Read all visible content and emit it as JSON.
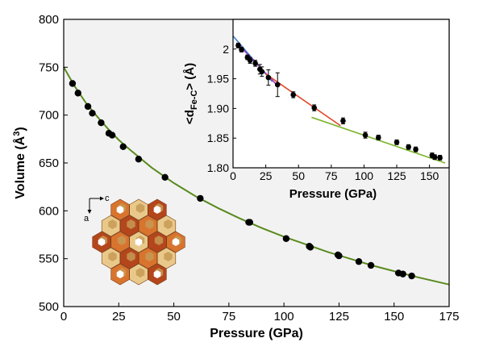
{
  "chart_data": [
    {
      "type": "scatter",
      "xlabel": "Pressure (GPa)",
      "ylabel": "Volume (Å3)",
      "xlim": [
        0,
        175
      ],
      "ylim": [
        500,
        800
      ],
      "xticks": [
        0,
        25,
        50,
        75,
        100,
        125,
        150,
        175
      ],
      "yticks": [
        500,
        550,
        600,
        650,
        700,
        750,
        800
      ],
      "x_tick_labels": [
        "0",
        "25",
        "50",
        "75",
        "100",
        "125",
        "150",
        "175"
      ],
      "y_tick_labels": [
        "500",
        "550",
        "600",
        "650",
        "700",
        "750",
        "800"
      ],
      "background": "#f2f2f2",
      "point_color": "#000000",
      "series": [
        {
          "x": [
            4,
            6.5,
            11,
            13,
            17,
            20.5,
            22,
            27,
            34,
            46,
            62,
            84,
            84.5,
            101,
            111.5,
            112,
            124.5,
            125,
            134,
            139.5,
            152,
            154,
            158
          ],
          "y": [
            733,
            723,
            709,
            702,
            692,
            681,
            679,
            667,
            654,
            635,
            613,
            588,
            588,
            571,
            563,
            562,
            554,
            553,
            547,
            543,
            535,
            534,
            532
          ]
        }
      ],
      "fit_curve": {
        "color": "#5a8a1e",
        "x": [
          0,
          5,
          10,
          15,
          20,
          25,
          30,
          40,
          50,
          60,
          70,
          80,
          90,
          100,
          110,
          120,
          130,
          140,
          150,
          160,
          175
        ],
        "y": [
          750,
          730,
          713,
          699,
          686,
          674,
          664,
          645,
          629,
          615,
          603,
          592,
          582,
          573,
          565,
          557,
          550,
          543,
          537,
          531,
          523
        ]
      }
    },
    {
      "type": "scatter",
      "xlabel": "Pressure (GPa)",
      "ylabel": "<dFe-C> (Å)",
      "xlim": [
        0,
        165
      ],
      "ylim": [
        1.8,
        2.05
      ],
      "xticks": [
        0,
        25,
        50,
        75,
        100,
        125,
        150
      ],
      "yticks": [
        1.8,
        1.85,
        1.9,
        1.95,
        2.0
      ],
      "x_tick_labels": [
        "0",
        "25",
        "50",
        "75",
        "100",
        "125",
        "150"
      ],
      "y_tick_labels": [
        "1.80",
        "1.85",
        "1.90",
        "1.95",
        "2"
      ],
      "series": [
        {
          "x": [
            4,
            6.5,
            11,
            13,
            17,
            20.5,
            22,
            27,
            34,
            46,
            62,
            84,
            101,
            111,
            125,
            134,
            139.5,
            152,
            154,
            158
          ],
          "y": [
            2.006,
            1.999,
            1.986,
            1.981,
            1.976,
            1.966,
            1.962,
            1.952,
            1.94,
            1.923,
            1.901,
            1.879,
            1.855,
            1.851,
            1.843,
            1.835,
            1.831,
            1.821,
            1.818,
            1.817
          ],
          "yerr": [
            0.004,
            0.004,
            0.004,
            0.005,
            0.005,
            0.008,
            0.008,
            0.013,
            0.02,
            0.005,
            0.005,
            0.005,
            0.005,
            0.004,
            0.004,
            0.004,
            0.004,
            0.004,
            0.004,
            0.004
          ]
        }
      ],
      "fit_lines": [
        {
          "color": "#3a7fd6",
          "x": [
            0,
            30
          ],
          "y": [
            2.022,
            1.945
          ]
        },
        {
          "color": "#9a3fbf",
          "x": [
            3,
            35
          ],
          "y": [
            2.01,
            1.936
          ]
        },
        {
          "color": "#e0472a",
          "x": [
            25,
            82
          ],
          "y": [
            1.958,
            1.871
          ]
        },
        {
          "color": "#7fb530",
          "x": [
            60,
            162
          ],
          "y": [
            1.885,
            1.808
          ]
        }
      ]
    }
  ],
  "crystal": {
    "axis_c_label": "c",
    "axis_a_label": "a",
    "colors": {
      "dark": "#b4461c",
      "mid": "#d8742e",
      "light": "#e9c98a",
      "tan": "#c79a55"
    }
  }
}
